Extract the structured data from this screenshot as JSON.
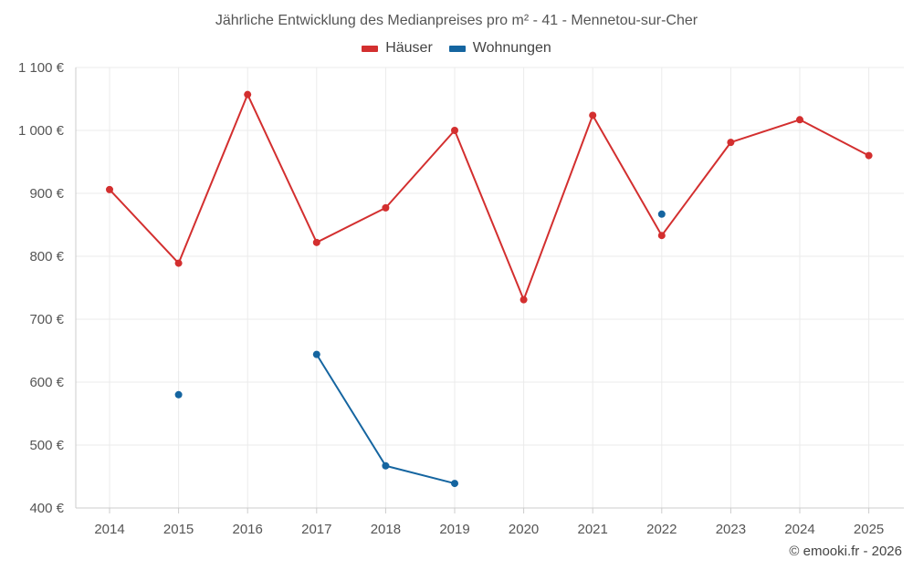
{
  "chart_data": {
    "type": "line",
    "title": "Jährliche Entwicklung des Medianpreises pro m² - 41 - Mennetou-sur-Cher",
    "categories": [
      "2014",
      "2015",
      "2016",
      "2017",
      "2018",
      "2019",
      "2020",
      "2021",
      "2022",
      "2023",
      "2024",
      "2025"
    ],
    "y_ticks": [
      "400 €",
      "500 €",
      "600 €",
      "700 €",
      "800 €",
      "900 €",
      "1 000 €",
      "1 100 €"
    ],
    "ylim": [
      400,
      1100
    ],
    "grid": true,
    "legend_position": "top-center",
    "series": [
      {
        "name": "Häuser",
        "color": "#d32f2f",
        "values": [
          906,
          789,
          1057,
          822,
          877,
          1000,
          731,
          1024,
          833,
          981,
          1017,
          960
        ]
      },
      {
        "name": "Wohnungen",
        "color": "#1565a0",
        "values": [
          null,
          580,
          null,
          644,
          467,
          439,
          null,
          null,
          867,
          null,
          null,
          null
        ]
      }
    ]
  },
  "credit": "© emooki.fr - 2026"
}
